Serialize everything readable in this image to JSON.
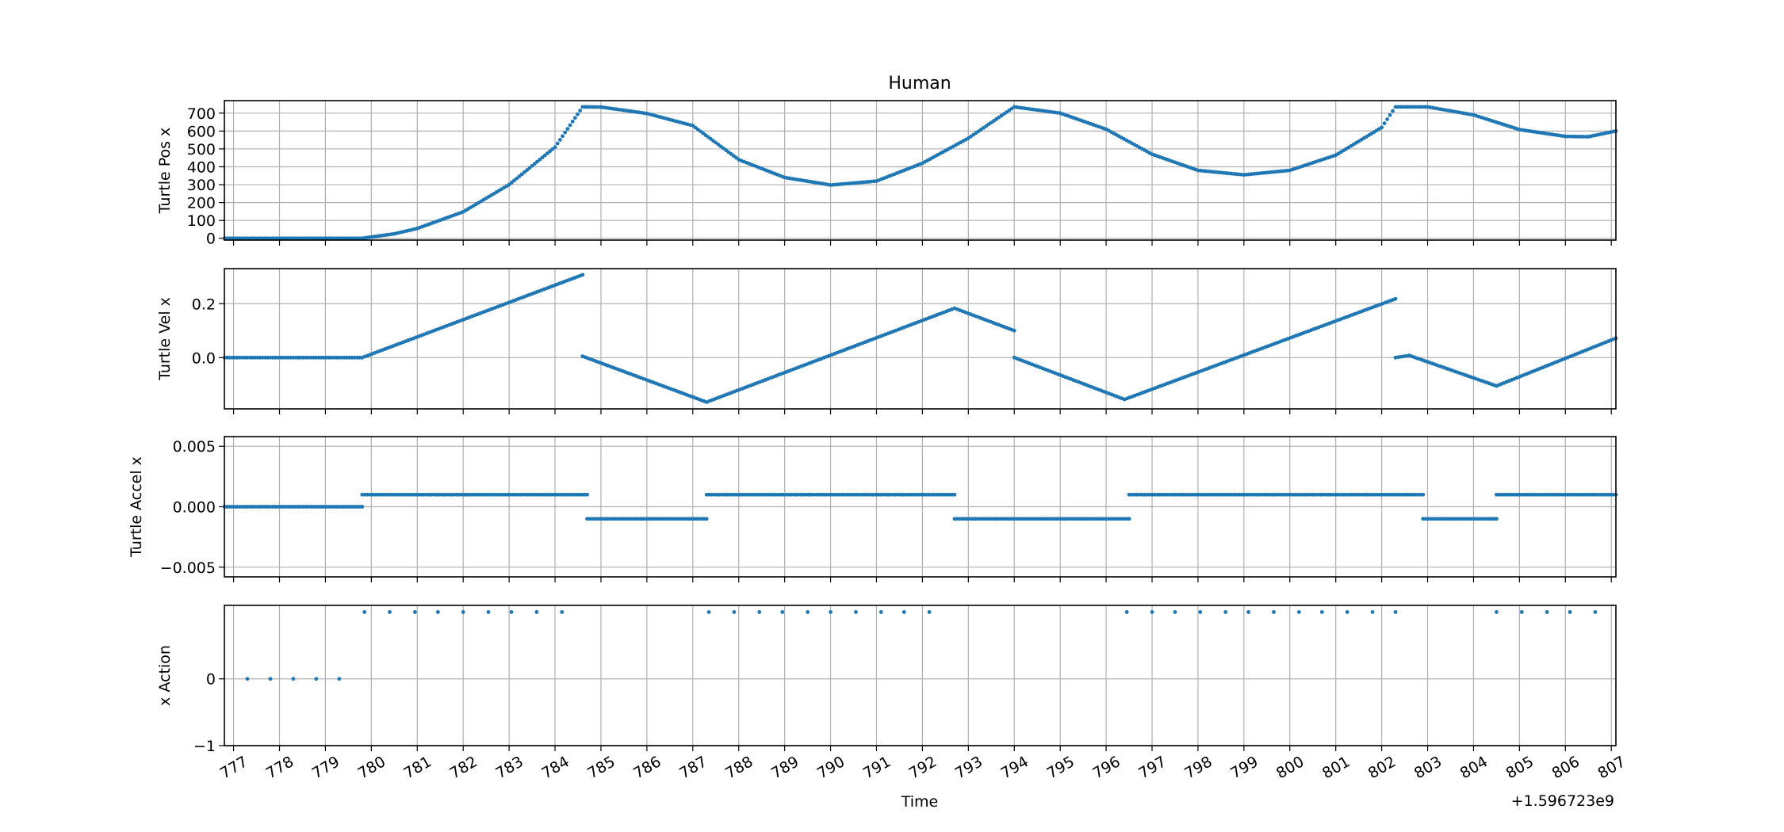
{
  "chart_data": {
    "type": "scatter",
    "title": "Human",
    "xlabel": "Time",
    "x_offset_label": "+1.596723e9",
    "x_tick_labels": [
      "777",
      "778",
      "779",
      "780",
      "781",
      "782",
      "783",
      "784",
      "785",
      "786",
      "787",
      "788",
      "789",
      "790",
      "791",
      "792",
      "793",
      "794",
      "795",
      "796",
      "797",
      "798",
      "799",
      "800",
      "801",
      "802",
      "803",
      "804",
      "805",
      "806",
      "807"
    ],
    "xlim": [
      776.8,
      807.1
    ],
    "grid": true,
    "marker_color": "#1f77b4",
    "panels": [
      {
        "ylabel": "Turtle Pos x",
        "ylim": [
          -10,
          770
        ],
        "y_ticks": [
          0,
          100,
          200,
          300,
          400,
          500,
          600,
          700
        ],
        "y_tick_labels": [
          "0",
          "100",
          "200",
          "300",
          "400",
          "500",
          "600",
          "700"
        ],
        "series": [
          {
            "points": [
              [
                776.8,
                0
              ],
              [
                779.8,
                0
              ],
              [
                780.5,
                25
              ],
              [
                781,
                55
              ],
              [
                782,
                148
              ],
              [
                783,
                300
              ],
              [
                784,
                510
              ],
              [
                784.6,
                735
              ],
              [
                785,
                734
              ],
              [
                786,
                698
              ],
              [
                787,
                630
              ],
              [
                788,
                440
              ],
              [
                789,
                340
              ],
              [
                790,
                298
              ],
              [
                791,
                320
              ],
              [
                792,
                420
              ],
              [
                793,
                560
              ],
              [
                794,
                735
              ],
              [
                795,
                700
              ],
              [
                796,
                610
              ],
              [
                797,
                470
              ],
              [
                798,
                380
              ],
              [
                799,
                355
              ],
              [
                800,
                380
              ],
              [
                801,
                465
              ],
              [
                802,
                620
              ],
              [
                802.3,
                735
              ],
              [
                803,
                735
              ],
              [
                804,
                690
              ],
              [
                805,
                608
              ],
              [
                806,
                570
              ],
              [
                806.5,
                568
              ],
              [
                807.1,
                600
              ]
            ]
          }
        ]
      },
      {
        "ylabel": "Turtle Vel x",
        "ylim": [
          -0.19,
          0.33
        ],
        "y_ticks": [
          0.0,
          0.2
        ],
        "y_tick_labels": [
          "0.0",
          "0.2"
        ],
        "series": [
          {
            "points": [
              [
                776.8,
                0
              ],
              [
                779.8,
                0
              ],
              [
                784.6,
                0.307
              ]
            ]
          },
          {
            "points": [
              [
                784.6,
                0.005
              ],
              [
                787.3,
                -0.165
              ],
              [
                792.7,
                0.183
              ],
              [
                794,
                0.1
              ]
            ]
          },
          {
            "points": [
              [
                794,
                0
              ],
              [
                796.4,
                -0.155
              ],
              [
                802.3,
                0.218
              ]
            ]
          },
          {
            "points": [
              [
                802.3,
                0
              ],
              [
                802.6,
                0.008
              ],
              [
                804.5,
                -0.105
              ],
              [
                807.1,
                0.072
              ]
            ]
          }
        ]
      },
      {
        "ylabel": "Turtle Accel x",
        "ylim": [
          -0.0058,
          0.0058
        ],
        "y_ticks": [
          -0.005,
          0.0,
          0.005
        ],
        "y_tick_labels": [
          "−0.005",
          "0.000",
          "0.005"
        ],
        "series": [
          {
            "points": [
              [
                776.8,
                0
              ],
              [
                779.8,
                0
              ]
            ]
          },
          {
            "points": [
              [
                779.8,
                0.001
              ],
              [
                784.7,
                0.001
              ]
            ]
          },
          {
            "points": [
              [
                784.7,
                -0.001
              ],
              [
                787.3,
                -0.001
              ]
            ]
          },
          {
            "points": [
              [
                787.3,
                0.001
              ],
              [
                792.7,
                0.001
              ]
            ]
          },
          {
            "points": [
              [
                792.7,
                -0.001
              ],
              [
                796.5,
                -0.001
              ]
            ]
          },
          {
            "points": [
              [
                796.5,
                0.001
              ],
              [
                802.9,
                0.001
              ]
            ]
          },
          {
            "points": [
              [
                802.9,
                -0.001
              ],
              [
                804.5,
                -0.001
              ]
            ]
          },
          {
            "points": [
              [
                804.5,
                0.001
              ],
              [
                807.1,
                0.001
              ]
            ]
          }
        ]
      },
      {
        "ylabel": "x Action",
        "ylim": [
          -1,
          1.1
        ],
        "y_ticks": [
          -1,
          0
        ],
        "y_tick_labels": [
          "−1",
          "0"
        ],
        "series": [
          {
            "points": [
              [
                777.3,
                0
              ],
              [
                777.8,
                0
              ],
              [
                778.3,
                0
              ],
              [
                778.8,
                0
              ],
              [
                779.3,
                0
              ]
            ]
          },
          {
            "points": [
              [
                779.85,
                1
              ],
              [
                780.4,
                1
              ],
              [
                780.95,
                1
              ],
              [
                781.45,
                1
              ],
              [
                782.0,
                1
              ],
              [
                782.55,
                1
              ],
              [
                783.05,
                1
              ],
              [
                783.6,
                1
              ],
              [
                784.15,
                1
              ]
            ]
          },
          {
            "points": [
              [
                787.35,
                1
              ],
              [
                787.9,
                1
              ],
              [
                788.45,
                1
              ],
              [
                788.95,
                1
              ],
              [
                789.5,
                1
              ],
              [
                790.0,
                1
              ],
              [
                790.55,
                1
              ],
              [
                791.1,
                1
              ],
              [
                791.6,
                1
              ],
              [
                792.15,
                1
              ]
            ]
          },
          {
            "points": [
              [
                796.45,
                1
              ],
              [
                797.0,
                1
              ],
              [
                797.5,
                1
              ],
              [
                798.05,
                1
              ],
              [
                798.6,
                1
              ],
              [
                799.1,
                1
              ],
              [
                799.65,
                1
              ],
              [
                800.2,
                1
              ],
              [
                800.7,
                1
              ],
              [
                801.25,
                1
              ],
              [
                801.8,
                1
              ],
              [
                802.3,
                1
              ]
            ]
          },
          {
            "points": [
              [
                804.5,
                1
              ],
              [
                805.05,
                1
              ],
              [
                805.6,
                1
              ],
              [
                806.1,
                1
              ],
              [
                806.65,
                1
              ]
            ]
          }
        ]
      }
    ]
  }
}
